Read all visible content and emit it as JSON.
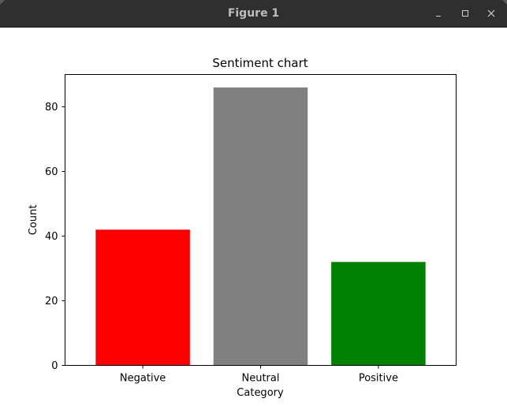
{
  "window": {
    "title": "Figure 1",
    "buttons": {
      "minimize_icon": "minimize-icon",
      "maximize_icon": "maximize-icon",
      "close_icon": "close-icon"
    }
  },
  "chart_data": {
    "type": "bar",
    "title": "Sentiment chart",
    "xlabel": "Category",
    "ylabel": "Count",
    "categories": [
      "Negative",
      "Neutral",
      "Positive"
    ],
    "values": [
      42,
      86,
      32
    ],
    "colors": [
      "#ff0000",
      "#808080",
      "#008000"
    ],
    "ylim": [
      0,
      90
    ],
    "yticks": [
      0,
      20,
      40,
      60,
      80
    ],
    "grid": false
  }
}
